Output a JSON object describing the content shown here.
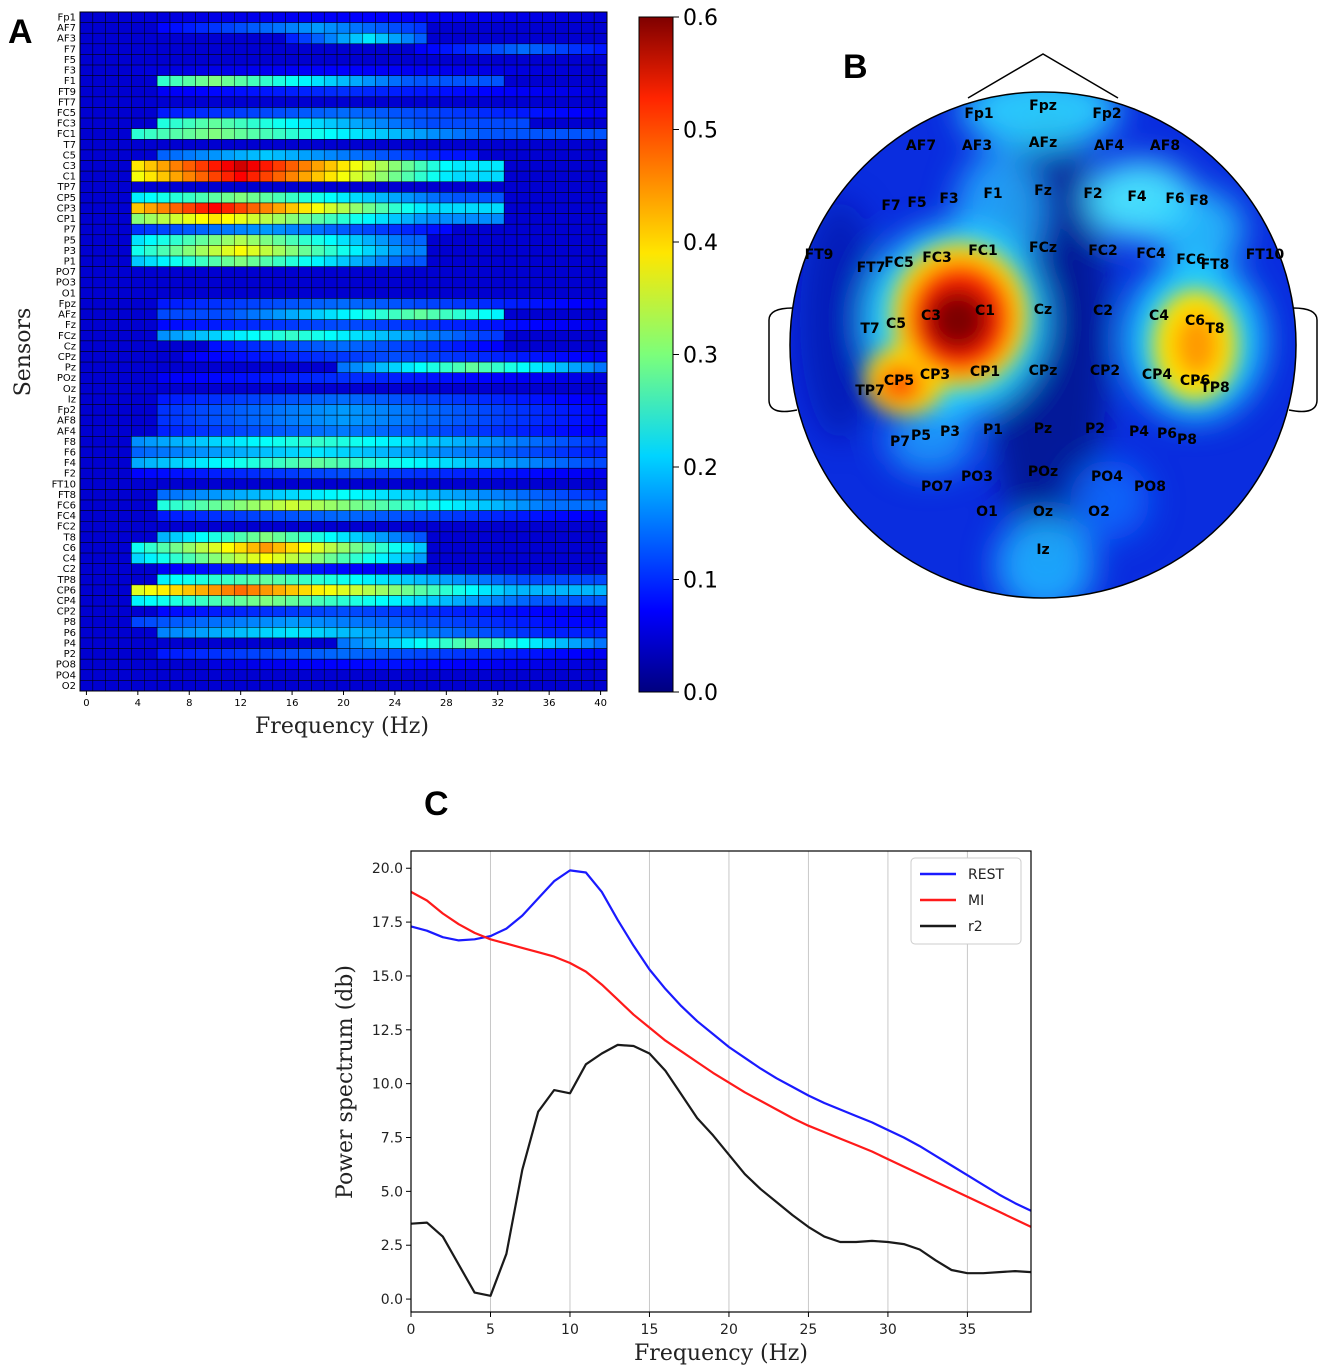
{
  "panels": {
    "a": {
      "letter": "A"
    },
    "b": {
      "letter": "B"
    },
    "c": {
      "letter": "C"
    }
  },
  "colors": {
    "rest": "#1a1aff",
    "mi": "#ff1a1a",
    "r2": "#1a1a1a",
    "colormap": "jet"
  },
  "chart_data": [
    {
      "type": "heatmap",
      "panel": "A",
      "xlabel": "Frequency (Hz)",
      "ylabel": "Sensors",
      "x_range": [
        0,
        40
      ],
      "x_ticks": [
        "0",
        "4",
        "8",
        "12",
        "16",
        "20",
        "24",
        "28",
        "32",
        "36",
        "40"
      ],
      "colorbar": {
        "min": 0.0,
        "max": 0.6,
        "ticks": [
          "0.0",
          "0.1",
          "0.2",
          "0.3",
          "0.4",
          "0.5",
          "0.6"
        ]
      },
      "sensors": [
        "Fp1",
        "AF7",
        "AF3",
        "F7",
        "F5",
        "F3",
        "F1",
        "FT9",
        "FT7",
        "FC5",
        "FC3",
        "FC1",
        "T7",
        "C5",
        "C3",
        "C1",
        "TP7",
        "CP5",
        "CP3",
        "CP1",
        "P7",
        "P5",
        "P3",
        "P1",
        "PO7",
        "PO3",
        "O1",
        "Fpz",
        "AFz",
        "Fz",
        "FCz",
        "Cz",
        "CPz",
        "Pz",
        "POz",
        "Oz",
        "Iz",
        "Fp2",
        "AF8",
        "AF4",
        "F8",
        "F6",
        "F4",
        "F2",
        "FT10",
        "FT8",
        "FC6",
        "FC4",
        "FC2",
        "T8",
        "C6",
        "C4",
        "C2",
        "TP8",
        "CP6",
        "CP4",
        "CP2",
        "P8",
        "P6",
        "P4",
        "P2",
        "PO8",
        "PO4",
        "O2"
      ],
      "bands": [
        {
          "sensor": "Fp1",
          "from": 0,
          "to": 40,
          "peak_hz": 22,
          "peak": 0.05
        },
        {
          "sensor": "AF7",
          "from": 6,
          "to": 26,
          "peak_hz": 18,
          "peak": 0.15
        },
        {
          "sensor": "AF3",
          "from": 16,
          "to": 26,
          "peak_hz": 22,
          "peak": 0.2
        },
        {
          "sensor": "F7",
          "from": 26,
          "to": 40,
          "peak_hz": 34,
          "peak": 0.12
        },
        {
          "sensor": "F3",
          "from": 4,
          "to": 40,
          "peak_hz": 20,
          "peak": 0.05
        },
        {
          "sensor": "F1",
          "from": 6,
          "to": 32,
          "peak_hz": 10,
          "peak": 0.3
        },
        {
          "sensor": "FT9",
          "from": 6,
          "to": 40,
          "peak_hz": 20,
          "peak": 0.08
        },
        {
          "sensor": "FC5",
          "from": 6,
          "to": 40,
          "peak_hz": 20,
          "peak": 0.12
        },
        {
          "sensor": "FC3",
          "from": 6,
          "to": 34,
          "peak_hz": 10,
          "peak": 0.28
        },
        {
          "sensor": "FC1",
          "from": 4,
          "to": 40,
          "peak_hz": 10,
          "peak": 0.3
        },
        {
          "sensor": "C5",
          "from": 6,
          "to": 30,
          "peak_hz": 14,
          "peak": 0.18
        },
        {
          "sensor": "C3",
          "from": 4,
          "to": 32,
          "peak_hz": 12,
          "peak": 0.58
        },
        {
          "sensor": "C1",
          "from": 4,
          "to": 32,
          "peak_hz": 12,
          "peak": 0.55
        },
        {
          "sensor": "CP5",
          "from": 4,
          "to": 32,
          "peak_hz": 12,
          "peak": 0.3
        },
        {
          "sensor": "CP3",
          "from": 4,
          "to": 32,
          "peak_hz": 10,
          "peak": 0.55
        },
        {
          "sensor": "CP1",
          "from": 4,
          "to": 32,
          "peak_hz": 10,
          "peak": 0.4
        },
        {
          "sensor": "P7",
          "from": 4,
          "to": 28,
          "peak_hz": 14,
          "peak": 0.15
        },
        {
          "sensor": "P5",
          "from": 4,
          "to": 26,
          "peak_hz": 12,
          "peak": 0.33
        },
        {
          "sensor": "P3",
          "from": 4,
          "to": 26,
          "peak_hz": 12,
          "peak": 0.38
        },
        {
          "sensor": "P1",
          "from": 4,
          "to": 26,
          "peak_hz": 12,
          "peak": 0.3
        },
        {
          "sensor": "Fpz",
          "from": 6,
          "to": 40,
          "peak_hz": 20,
          "peak": 0.12
        },
        {
          "sensor": "AFz",
          "from": 6,
          "to": 32,
          "peak_hz": 26,
          "peak": 0.28
        },
        {
          "sensor": "Fz",
          "from": 6,
          "to": 40,
          "peak_hz": 20,
          "peak": 0.1
        },
        {
          "sensor": "FCz",
          "from": 6,
          "to": 32,
          "peak_hz": 16,
          "peak": 0.25
        },
        {
          "sensor": "Cz",
          "from": 10,
          "to": 32,
          "peak_hz": 20,
          "peak": 0.12
        },
        {
          "sensor": "CPz",
          "from": 8,
          "to": 40,
          "peak_hz": 24,
          "peak": 0.1
        },
        {
          "sensor": "Pz",
          "from": 20,
          "to": 40,
          "peak_hz": 30,
          "peak": 0.28
        },
        {
          "sensor": "POz",
          "from": 6,
          "to": 40,
          "peak_hz": 20,
          "peak": 0.08
        },
        {
          "sensor": "Iz",
          "from": 6,
          "to": 40,
          "peak_hz": 20,
          "peak": 0.12
        },
        {
          "sensor": "Fp2",
          "from": 6,
          "to": 40,
          "peak_hz": 20,
          "peak": 0.15
        },
        {
          "sensor": "AF8",
          "from": 6,
          "to": 40,
          "peak_hz": 20,
          "peak": 0.15
        },
        {
          "sensor": "AF4",
          "from": 6,
          "to": 40,
          "peak_hz": 20,
          "peak": 0.13
        },
        {
          "sensor": "F8",
          "from": 4,
          "to": 40,
          "peak_hz": 18,
          "peak": 0.25
        },
        {
          "sensor": "F6",
          "from": 4,
          "to": 40,
          "peak_hz": 18,
          "peak": 0.2
        },
        {
          "sensor": "F4",
          "from": 4,
          "to": 40,
          "peak_hz": 18,
          "peak": 0.28
        },
        {
          "sensor": "F2",
          "from": 4,
          "to": 40,
          "peak_hz": 20,
          "peak": 0.1
        },
        {
          "sensor": "FT8",
          "from": 6,
          "to": 40,
          "peak_hz": 20,
          "peak": 0.22
        },
        {
          "sensor": "FC6",
          "from": 6,
          "to": 40,
          "peak_hz": 16,
          "peak": 0.35
        },
        {
          "sensor": "FC4",
          "from": 6,
          "to": 40,
          "peak_hz": 20,
          "peak": 0.12
        },
        {
          "sensor": "T8",
          "from": 6,
          "to": 26,
          "peak_hz": 14,
          "peak": 0.3
        },
        {
          "sensor": "C6",
          "from": 4,
          "to": 26,
          "peak_hz": 14,
          "peak": 0.45
        },
        {
          "sensor": "C4",
          "from": 4,
          "to": 26,
          "peak_hz": 14,
          "peak": 0.38
        },
        {
          "sensor": "C2",
          "from": 6,
          "to": 26,
          "peak_hz": 14,
          "peak": 0.08
        },
        {
          "sensor": "TP8",
          "from": 6,
          "to": 40,
          "peak_hz": 14,
          "peak": 0.28
        },
        {
          "sensor": "CP6",
          "from": 4,
          "to": 40,
          "peak_hz": 12,
          "peak": 0.48
        },
        {
          "sensor": "CP4",
          "from": 4,
          "to": 40,
          "peak_hz": 14,
          "peak": 0.3
        },
        {
          "sensor": "CP2",
          "from": 6,
          "to": 40,
          "peak_hz": 20,
          "peak": 0.1
        },
        {
          "sensor": "P8",
          "from": 4,
          "to": 40,
          "peak_hz": 16,
          "peak": 0.15
        },
        {
          "sensor": "P6",
          "from": 6,
          "to": 40,
          "peak_hz": 16,
          "peak": 0.2
        },
        {
          "sensor": "P4",
          "from": 20,
          "to": 40,
          "peak_hz": 30,
          "peak": 0.28
        },
        {
          "sensor": "P2",
          "from": 6,
          "to": 40,
          "peak_hz": 20,
          "peak": 0.12
        },
        {
          "sensor": "PO8",
          "from": 10,
          "to": 40,
          "peak_hz": 24,
          "peak": 0.06
        }
      ]
    },
    {
      "type": "heatmap",
      "panel": "B",
      "subtype": "topographic scalp map",
      "electrodes": [
        "Fp1",
        "Fpz",
        "Fp2",
        "AF7",
        "AF3",
        "AFz",
        "AF4",
        "AF8",
        "F7",
        "F5",
        "F3",
        "F1",
        "Fz",
        "F2",
        "F4",
        "F6",
        "F8",
        "FT9",
        "FT7",
        "FC5",
        "FC3",
        "FC1",
        "FCz",
        "FC2",
        "FC4",
        "FC6",
        "FT8",
        "FT10",
        "T7",
        "C5",
        "C3",
        "C1",
        "Cz",
        "C2",
        "C4",
        "C6",
        "T8",
        "TP7",
        "CP5",
        "CP3",
        "CP1",
        "CPz",
        "CP2",
        "CP4",
        "CP6",
        "TP8",
        "P7",
        "P5",
        "P3",
        "P1",
        "Pz",
        "P2",
        "P4",
        "P6",
        "P8",
        "PO7",
        "PO3",
        "POz",
        "PO4",
        "PO8",
        "O1",
        "Oz",
        "O2",
        "Iz"
      ],
      "hotspots": [
        {
          "near": "C3",
          "value": 0.6
        },
        {
          "near": "C1",
          "value": 0.55
        },
        {
          "near": "CP5",
          "value": 0.45
        },
        {
          "near": "C6",
          "value": 0.42
        },
        {
          "near": "CP6",
          "value": 0.35
        },
        {
          "near": "F4",
          "value": 0.3
        },
        {
          "near": "Fpz",
          "value": 0.25
        },
        {
          "near": "Iz",
          "value": 0.22
        }
      ]
    },
    {
      "type": "line",
      "panel": "C",
      "xlabel": "Frequency (Hz)",
      "ylabel": "Power spectrum (db)",
      "xlim": [
        0,
        39
      ],
      "ylim": [
        -0.6,
        20.8
      ],
      "x_ticks": [
        "0",
        "5",
        "10",
        "15",
        "20",
        "25",
        "30",
        "35"
      ],
      "y_ticks": [
        "0.0",
        "2.5",
        "5.0",
        "7.5",
        "10.0",
        "12.5",
        "15.0",
        "17.5",
        "20.0"
      ],
      "grid": "vertical",
      "legend_position": "top-right",
      "x": [
        0,
        1,
        2,
        3,
        4,
        5,
        6,
        7,
        8,
        9,
        10,
        11,
        12,
        13,
        14,
        15,
        16,
        17,
        18,
        19,
        20,
        21,
        22,
        23,
        24,
        25,
        26,
        27,
        28,
        29,
        30,
        31,
        32,
        33,
        34,
        35,
        36,
        37,
        38,
        39
      ],
      "series": [
        {
          "name": "REST",
          "values": [
            17.3,
            17.1,
            16.8,
            16.65,
            16.7,
            16.85,
            17.2,
            17.8,
            18.6,
            19.4,
            19.9,
            19.8,
            18.9,
            17.6,
            16.4,
            15.3,
            14.4,
            13.6,
            12.9,
            12.3,
            11.7,
            11.2,
            10.7,
            10.25,
            9.85,
            9.45,
            9.1,
            8.8,
            8.5,
            8.2,
            7.85,
            7.5,
            7.1,
            6.65,
            6.2,
            5.75,
            5.3,
            4.85,
            4.45,
            4.1
          ]
        },
        {
          "name": "MI",
          "values": [
            18.9,
            18.5,
            17.9,
            17.4,
            17.0,
            16.7,
            16.5,
            16.3,
            16.1,
            15.9,
            15.6,
            15.2,
            14.6,
            13.9,
            13.2,
            12.6,
            12.0,
            11.5,
            11.0,
            10.5,
            10.05,
            9.6,
            9.2,
            8.8,
            8.4,
            8.05,
            7.75,
            7.45,
            7.15,
            6.85,
            6.5,
            6.15,
            5.8,
            5.45,
            5.1,
            4.75,
            4.4,
            4.05,
            3.7,
            3.35
          ]
        },
        {
          "name": "r2",
          "values": [
            3.5,
            3.55,
            2.9,
            1.6,
            0.3,
            0.15,
            2.1,
            6.0,
            8.7,
            9.7,
            9.55,
            10.9,
            11.4,
            11.8,
            11.75,
            11.4,
            10.6,
            9.5,
            8.4,
            7.6,
            6.7,
            5.8,
            5.1,
            4.5,
            3.9,
            3.35,
            2.9,
            2.65,
            2.65,
            2.7,
            2.65,
            2.55,
            2.3,
            1.8,
            1.35,
            1.2,
            1.2,
            1.25,
            1.3,
            1.25
          ]
        }
      ]
    }
  ]
}
